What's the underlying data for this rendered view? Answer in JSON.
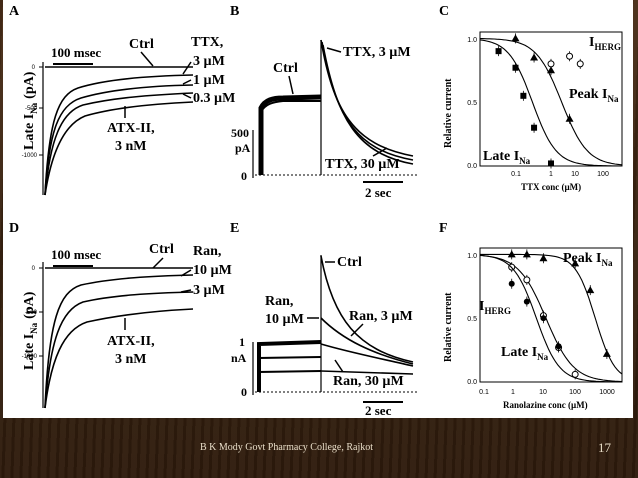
{
  "slide": {
    "credit": "B K Mody Govt Pharmacy College, Rajkot",
    "page_number": "17"
  },
  "panels": {
    "A": {
      "letter": "A",
      "scale_bar": "100 msec",
      "ylabel": "Late I",
      "ylabel_sub": "Na",
      "ylabel_unit": "(pA)",
      "yticks": [
        "0",
        "-500",
        "-1000"
      ],
      "labels": {
        "ctrl": "Ctrl",
        "ttx": "TTX,",
        "ttx3": "3 µM",
        "ttx1": "1 µM",
        "ttx03": "0.3 µM",
        "atx": "ATX-II,",
        "atx_conc": "3 nM"
      }
    },
    "B": {
      "letter": "B",
      "labels": {
        "ttx3": "TTX, 3 µM",
        "ctrl": "Ctrl",
        "ttx30": "TTX, 30 µM"
      },
      "y_scale": "500",
      "y_unit": "pA",
      "zero": "0",
      "time_bar": "2 sec"
    },
    "C": {
      "letter": "C",
      "ylabel": "Relative current",
      "xlabel": "TTX conc (µM)",
      "yticks": [
        "0.0",
        "0.5",
        "1.0"
      ],
      "xticks": [
        "0.1",
        "1",
        "10",
        "100"
      ],
      "labels": {
        "iherg": "I",
        "iherg_sub": "HERG",
        "peak": "Peak I",
        "peak_sub": "Na",
        "late": "Late I",
        "late_sub": "Na"
      }
    },
    "D": {
      "letter": "D",
      "scale_bar": "100 msec",
      "ylabel": "Late I",
      "ylabel_sub": "Na",
      "ylabel_unit": "(pA)",
      "yticks": [
        "0",
        "-500",
        "-1000"
      ],
      "labels": {
        "ctrl": "Ctrl",
        "ran": "Ran,",
        "ran10": "10 µM",
        "ran3": "3 µM",
        "atx": "ATX-II,",
        "atx_conc": "3 nM"
      }
    },
    "E": {
      "letter": "E",
      "labels": {
        "ctrl": "Ctrl",
        "ran10a": "Ran,",
        "ran10b": "10 µM",
        "ran3": "Ran, 3 µM",
        "ran30": "Ran, 30 µM"
      },
      "y_scale": "1",
      "y_unit": "nA",
      "zero": "0",
      "time_bar": "2 sec"
    },
    "F": {
      "letter": "F",
      "ylabel": "Relative current",
      "xlabel": "Ranolazine conc (µM)",
      "yticks": [
        "0.0",
        "0.5",
        "1.0"
      ],
      "xticks": [
        "0.1",
        "1",
        "10",
        "100",
        "1000"
      ],
      "labels": {
        "peak": "Peak I",
        "peak_sub": "Na",
        "iherg": "I",
        "iherg_sub": "HERG",
        "late": "Late I",
        "late_sub": "Na"
      }
    }
  },
  "chart_data": [
    {
      "panel": "C",
      "type": "scatter",
      "title": "",
      "xlabel": "TTX conc (µM)",
      "ylabel": "Relative current",
      "xscale": "log",
      "xlim": [
        0.03,
        300
      ],
      "ylim": [
        0,
        1.05
      ],
      "series": [
        {
          "name": "Late INa",
          "ic50": 0.9,
          "hill": 1.3,
          "marker": "square",
          "x": [
            0.1,
            0.3,
            0.5,
            1,
            3
          ],
          "y": [
            0.9,
            0.77,
            0.55,
            0.3,
            0.02
          ]
        },
        {
          "name": "Peak INa",
          "ic50": 6,
          "hill": 1.2,
          "marker": "triangle",
          "x": [
            0.3,
            1,
            3,
            10
          ],
          "y": [
            1.0,
            0.85,
            0.75,
            0.37
          ]
        },
        {
          "name": "IHERG",
          "ic50": null,
          "marker": "open-circle",
          "x": [
            3,
            10,
            20
          ],
          "y": [
            0.8,
            0.86,
            0.8
          ]
        }
      ]
    },
    {
      "panel": "F",
      "type": "scatter",
      "title": "",
      "xlabel": "Ranolazine conc (µM)",
      "ylabel": "Relative current",
      "xscale": "log",
      "xlim": [
        0.1,
        3000
      ],
      "ylim": [
        0,
        1.05
      ],
      "series": [
        {
          "name": "Peak INa",
          "ic50": 430,
          "hill": 1.4,
          "marker": "triangle",
          "x": [
            1,
            3,
            10,
            100,
            300,
            1000
          ],
          "y": [
            1.0,
            1.0,
            0.97,
            0.93,
            0.72,
            0.22
          ]
        },
        {
          "name": "IHERG",
          "ic50": 12,
          "hill": 1.0,
          "marker": "open-circle",
          "x": [
            1,
            3,
            10,
            30,
            100
          ],
          "y": [
            0.9,
            0.8,
            0.52,
            0.27,
            0.06
          ]
        },
        {
          "name": "Late INa",
          "ic50": 6,
          "hill": 1.2,
          "marker": "filled-circle",
          "x": [
            1,
            3,
            10,
            30
          ],
          "y": [
            0.77,
            0.63,
            0.5,
            0.28
          ]
        }
      ]
    }
  ]
}
